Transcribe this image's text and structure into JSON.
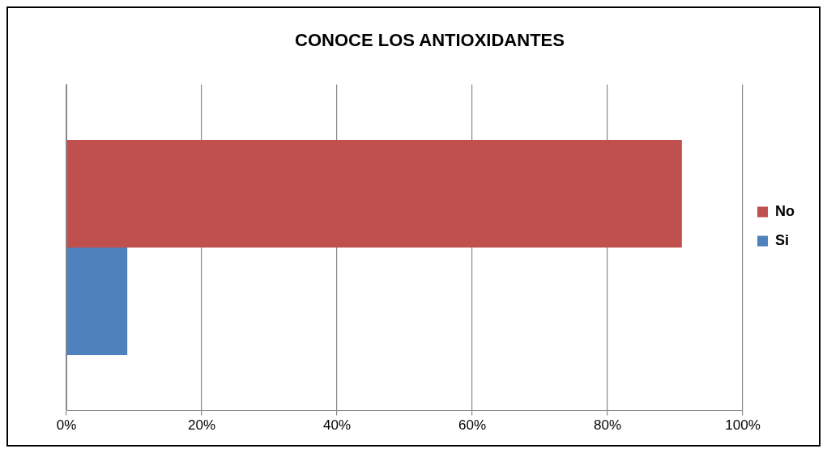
{
  "chart_data": {
    "type": "bar",
    "title": "CONOCE LOS ANTIOXIDANTES",
    "orientation": "horizontal",
    "categories": [
      null
    ],
    "series": [
      {
        "name": "No",
        "color": "#c0504d",
        "values": [
          91
        ]
      },
      {
        "name": "Si",
        "color": "#4f81bd",
        "values": [
          9
        ]
      }
    ],
    "xlim": [
      0,
      100
    ],
    "xticks": [
      {
        "value": 0,
        "label": "0%"
      },
      {
        "value": 20,
        "label": "20%"
      },
      {
        "value": 40,
        "label": "40%"
      },
      {
        "value": 60,
        "label": "60%"
      },
      {
        "value": 80,
        "label": "80%"
      },
      {
        "value": 100,
        "label": "100%"
      }
    ],
    "grid": "x",
    "legend": "right"
  }
}
